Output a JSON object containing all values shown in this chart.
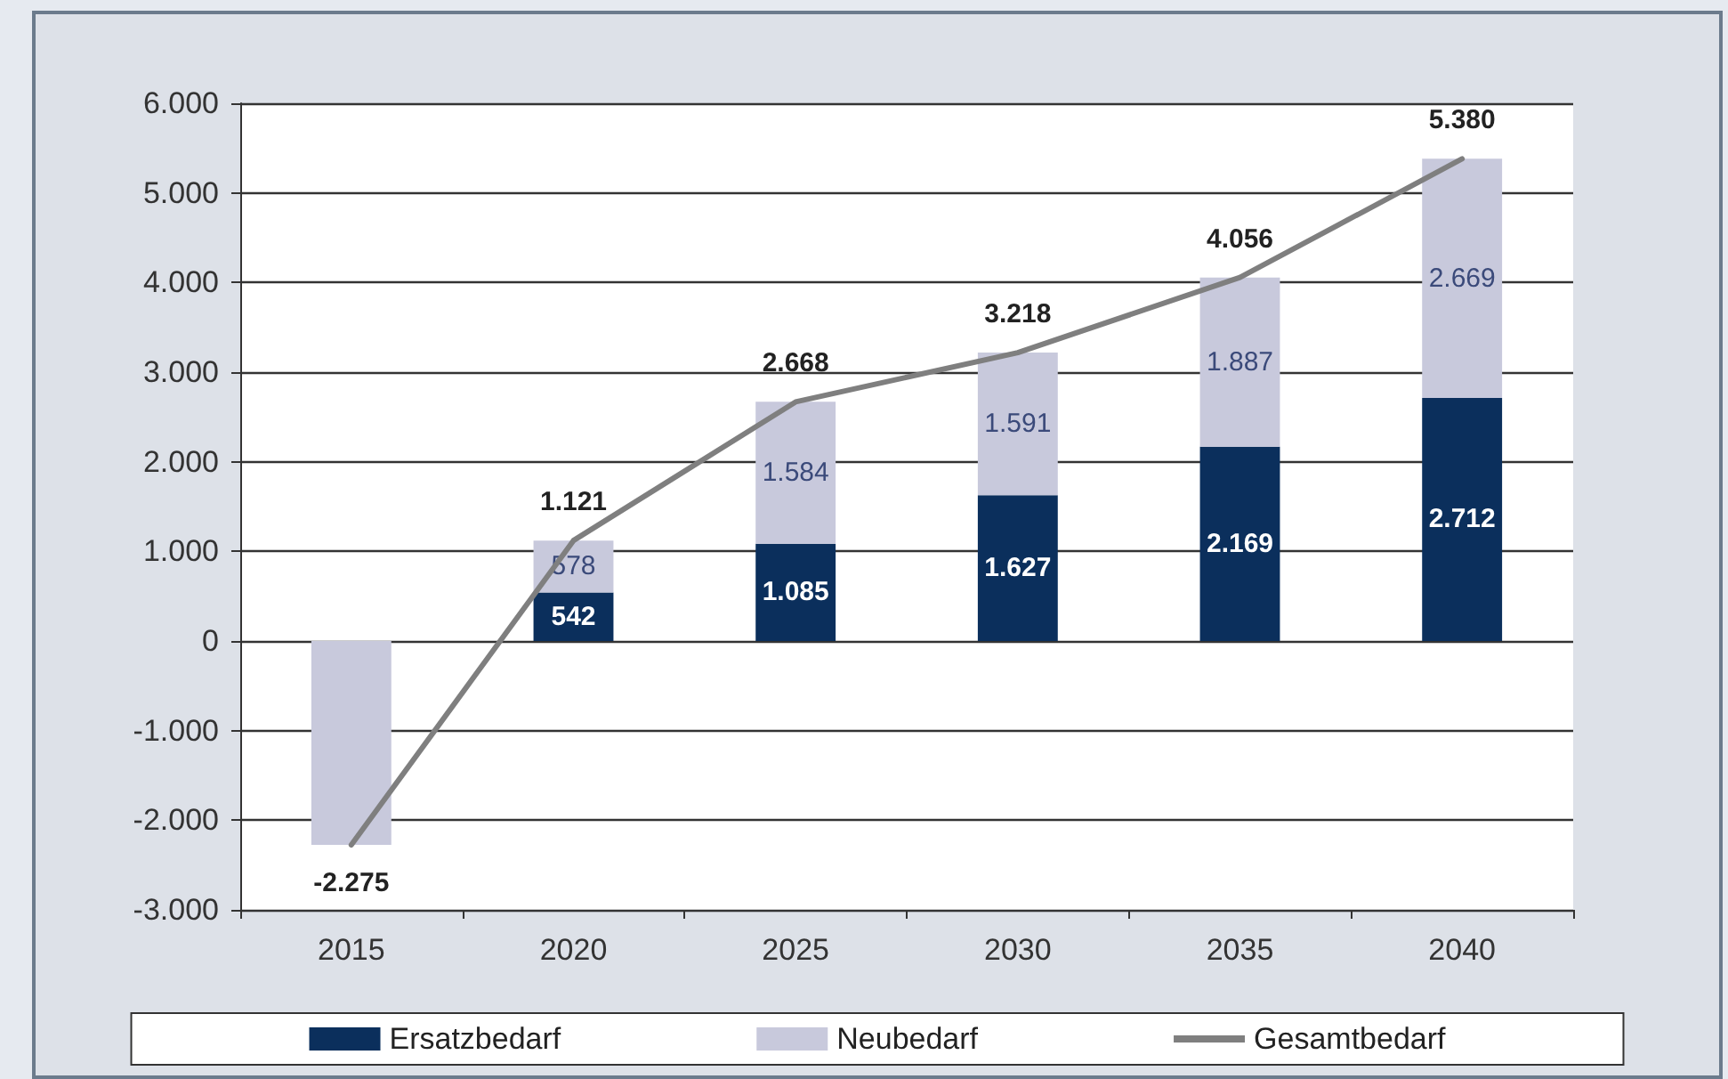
{
  "chart_data": {
    "type": "bar",
    "stacked": true,
    "categories": [
      "2015",
      "2020",
      "2025",
      "2030",
      "2035",
      "2040"
    ],
    "series": [
      {
        "name": "Ersatzbedarf",
        "color": "#0b2f5c",
        "values": [
          null,
          542,
          1085,
          1627,
          2169,
          2712
        ],
        "value_labels": [
          null,
          "542",
          "1.085",
          "1.627",
          "2.169",
          "2.712"
        ]
      },
      {
        "name": "Neubedarf",
        "color": "#c8c9dc",
        "values": [
          -2275,
          578,
          1584,
          1591,
          1887,
          2669
        ],
        "value_labels": [
          null,
          "578",
          "1.584",
          "1.591",
          "1.887",
          "2.669"
        ]
      },
      {
        "name": "Gesamtbedarf",
        "type": "line",
        "color": "#7f7f7f",
        "values": [
          -2275,
          1121,
          2668,
          3218,
          4056,
          5380
        ],
        "value_labels": [
          "-2.275",
          "1.121",
          "2.668",
          "3.218",
          "4.056",
          "5.380"
        ]
      }
    ],
    "ylim": [
      -3000,
      6000
    ],
    "yticks": [
      {
        "value": -3000,
        "label": "-3.000"
      },
      {
        "value": -2000,
        "label": "-2.000"
      },
      {
        "value": -1000,
        "label": "-1.000"
      },
      {
        "value": 0,
        "label": "0"
      },
      {
        "value": 1000,
        "label": "1.000"
      },
      {
        "value": 2000,
        "label": "2.000"
      },
      {
        "value": 3000,
        "label": "3.000"
      },
      {
        "value": 4000,
        "label": "4.000"
      },
      {
        "value": 5000,
        "label": "5.000"
      },
      {
        "value": 6000,
        "label": "6.000"
      }
    ],
    "grid": "y",
    "legend": "bottom",
    "marker": "none",
    "line_style": "solid"
  }
}
